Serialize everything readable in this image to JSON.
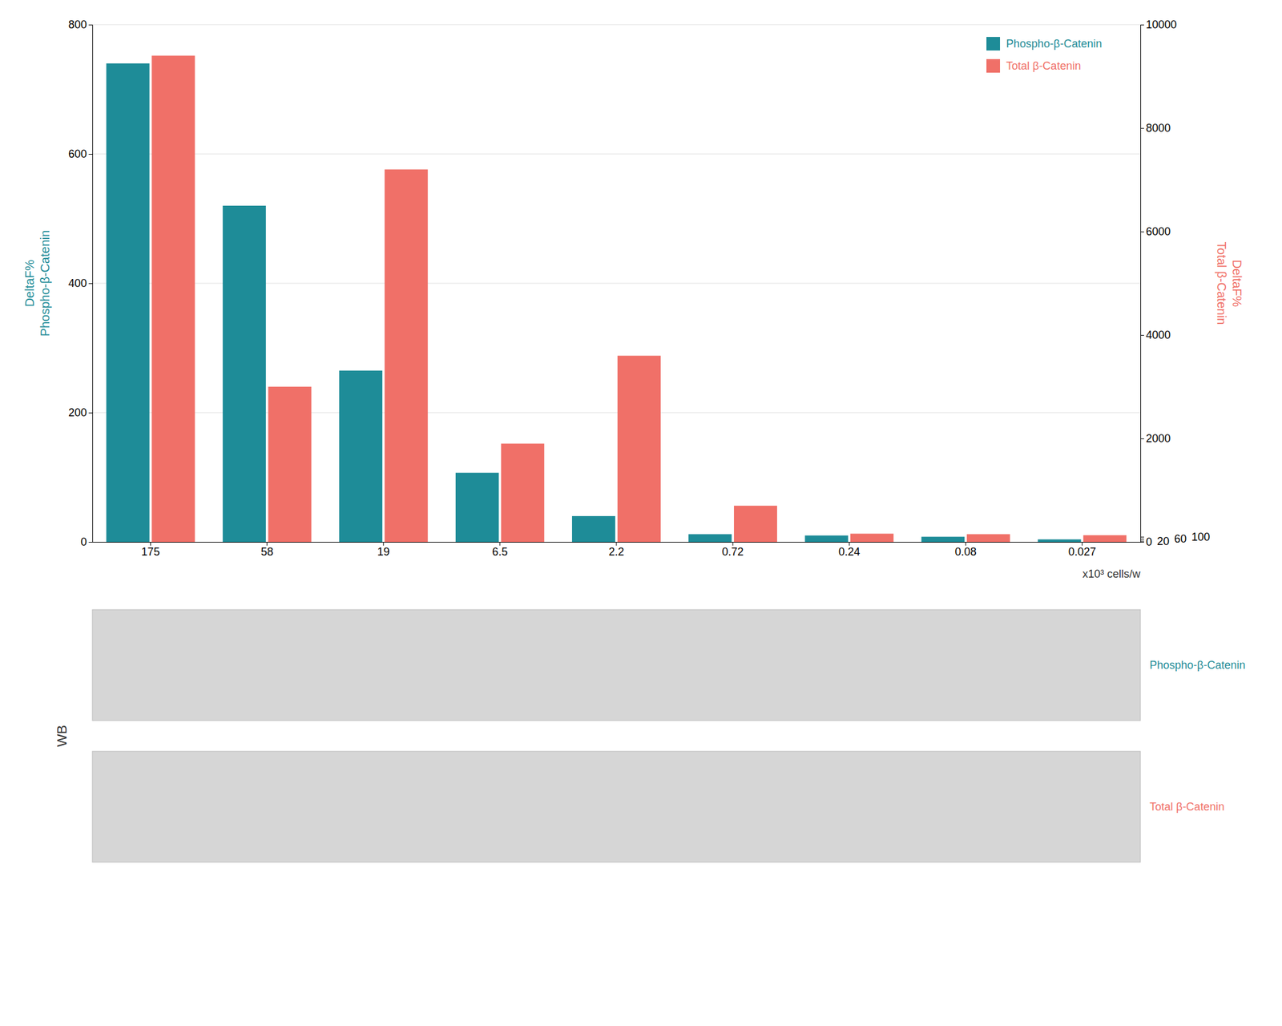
{
  "chart_data": {
    "type": "bar",
    "categories": [
      "175",
      "58",
      "19",
      "6.5",
      "2.2",
      "0.72",
      "0.24",
      "0.08",
      "0.027"
    ],
    "series": [
      {
        "name": "Phospho-β-Catenin",
        "color": "#1e8c98",
        "values": [
          740,
          520,
          265,
          107,
          40,
          12,
          10,
          8,
          4
        ]
      },
      {
        "name": "Total β-Catenin",
        "color": "#f07068",
        "axis": "y2",
        "values": [
          9400,
          3000,
          7200,
          1900,
          3600,
          700,
          160,
          150,
          130
        ]
      }
    ],
    "xlabel": "x10³ cells/w",
    "ylabel": [
      "DeltaF%",
      "Phospho-β-Catenin"
    ],
    "y2label": [
      "DeltaF%",
      "Total β-Catenin"
    ],
    "ylim": [
      0,
      800
    ],
    "yticks": [
      0,
      200,
      400,
      600,
      800
    ],
    "y2lim": [
      0,
      10000
    ],
    "y2ticks": [
      0,
      20,
      60,
      100,
      2000,
      4000,
      6000,
      8000,
      10000
    ],
    "grid": true,
    "legend": "upper right",
    "annotations": [
      {
        "text": "WB"
      },
      {
        "text": "Phospho-β-Catenin",
        "color": "#1e8c98"
      },
      {
        "text": "Total β-Catenin",
        "color": "#f07068"
      }
    ]
  }
}
